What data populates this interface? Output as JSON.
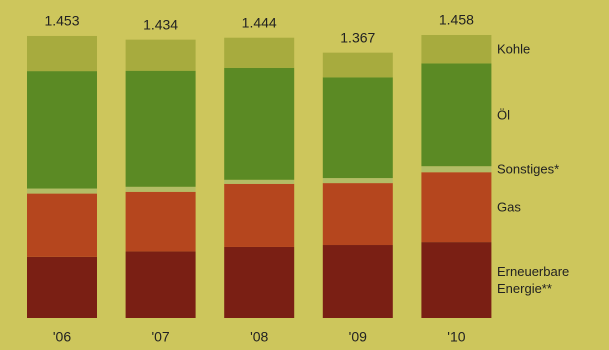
{
  "chart_data": {
    "type": "stacked-bar",
    "categories": [
      "'06",
      "'07",
      "'08",
      "'09",
      "'10"
    ],
    "series": [
      {
        "name": "Erneuerbare Energie**",
        "color": "#7a1f14",
        "values": [
          315,
          343,
          366,
          376,
          391
        ]
      },
      {
        "name": "Gas",
        "color": "#b5461e",
        "values": [
          326,
          307,
          325,
          319,
          360
        ]
      },
      {
        "name": "Sonstiges*",
        "color": "#b3bd66",
        "values": [
          26,
          26,
          21,
          26,
          31
        ]
      },
      {
        "name": "Öl",
        "color": "#5b8a24",
        "values": [
          605,
          598,
          577,
          519,
          530
        ]
      },
      {
        "name": "Kohle",
        "color": "#a7ab3e",
        "values": [
          181,
          160,
          155,
          127,
          146
        ]
      }
    ],
    "totals": {
      "values": [
        1453,
        1434,
        1444,
        1367,
        1458
      ],
      "value_labels": [
        "1.453",
        "1.434",
        "1.444",
        "1.367",
        "1.458"
      ]
    }
  }
}
